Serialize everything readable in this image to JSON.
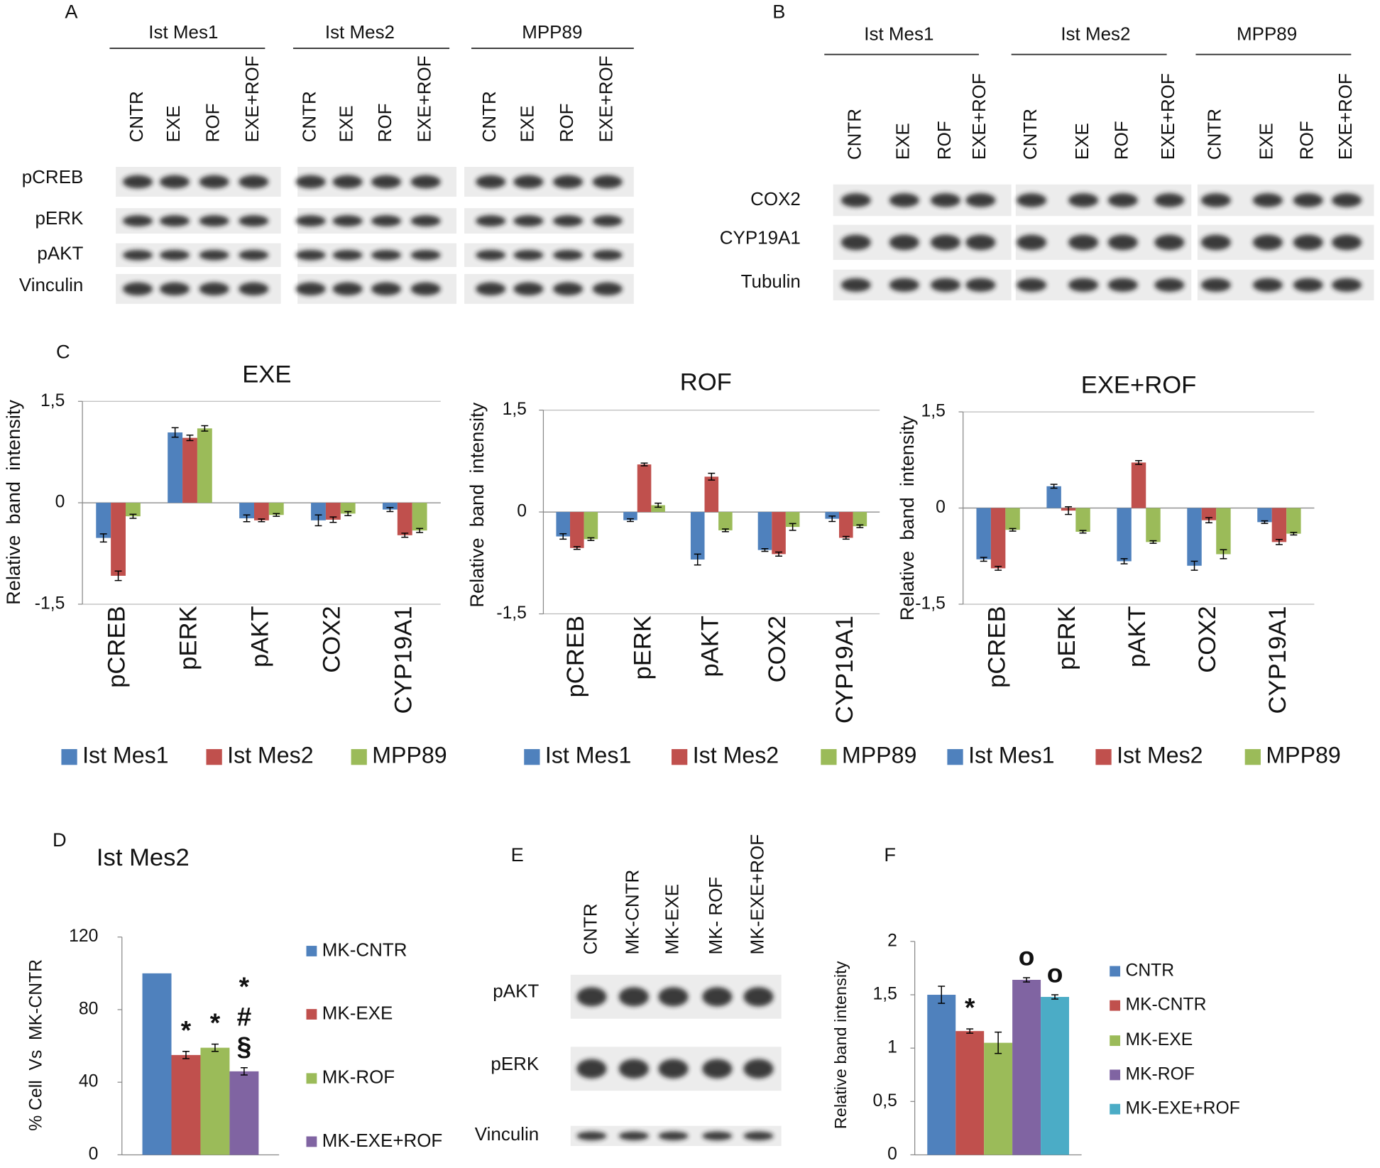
{
  "panel_labels": [
    "A",
    "B",
    "C",
    "D",
    "E",
    "F"
  ],
  "blot_a": {
    "groups": [
      "Ist Mes1",
      "Ist Mes2",
      "MPP89"
    ],
    "lanes": [
      "CNTR",
      "EXE",
      "ROF",
      "EXE+ROF"
    ],
    "rows": [
      "pCREB",
      "pERK",
      "pAKT",
      "Vinculin"
    ]
  },
  "blot_b": {
    "groups": [
      "Ist Mes1",
      "Ist Mes2",
      "MPP89"
    ],
    "lanes": [
      "CNTR",
      "EXE",
      "ROF",
      "EXE+ROF"
    ],
    "rows": [
      "COX2",
      "CYP19A1",
      "Tubulin"
    ]
  },
  "blot_e": {
    "lanes": [
      "CNTR",
      "MK-CNTR",
      "MK-EXE",
      "MK- ROF",
      "MK-EXE+ROF"
    ],
    "rows": [
      "pAKT",
      "pERK",
      "Vinculin"
    ]
  },
  "chart_data": [
    {
      "type": "bar",
      "title": "EXE",
      "ylabel": "Relative  band  intensity",
      "categories": [
        "pCREB",
        "pERK",
        "pAKT",
        "COX2",
        "CYP19A1"
      ],
      "series": [
        {
          "name": "Ist Mes1",
          "color": "#4f81bd",
          "values": [
            -0.52,
            1.04,
            -0.23,
            -0.26,
            -0.1
          ],
          "errors": [
            0.06,
            0.07,
            0.05,
            0.08,
            0.03
          ]
        },
        {
          "name": "Ist Mes2",
          "color": "#c0504d",
          "values": [
            -1.08,
            0.96,
            -0.26,
            -0.25,
            -0.48
          ],
          "errors": [
            0.07,
            0.04,
            0.02,
            0.04,
            0.03
          ]
        },
        {
          "name": "MPP89",
          "color": "#9bbb59",
          "values": [
            -0.2,
            1.1,
            -0.18,
            -0.16,
            -0.41
          ],
          "errors": [
            0.03,
            0.04,
            0.02,
            0.03,
            0.03
          ]
        }
      ],
      "ylim": [
        -1.5,
        1.5
      ],
      "yticks": [
        {
          "value": -1.5,
          "label": "-1,5"
        },
        0,
        {
          "value": 1.5,
          "label": "1,5"
        }
      ],
      "grid": true
    },
    {
      "type": "bar",
      "title": "ROF",
      "ylabel": "Relative  band  intensity",
      "categories": [
        "pCREB",
        "pERK",
        "pAKT",
        "COX2",
        "CYP19A1"
      ],
      "series": [
        {
          "name": "Ist Mes1",
          "color": "#4f81bd",
          "values": [
            -0.36,
            -0.12,
            -0.7,
            -0.56,
            -0.1
          ],
          "errors": [
            0.04,
            0.02,
            0.08,
            0.02,
            0.04
          ]
        },
        {
          "name": "Ist Mes2",
          "color": "#c0504d",
          "values": [
            -0.53,
            0.7,
            0.52,
            -0.62,
            -0.38
          ],
          "errors": [
            0.02,
            0.02,
            0.05,
            0.03,
            0.02
          ]
        },
        {
          "name": "MPP89",
          "color": "#9bbb59",
          "values": [
            -0.4,
            0.1,
            -0.27,
            -0.22,
            -0.21
          ],
          "errors": [
            0.02,
            0.03,
            0.02,
            0.05,
            0.02
          ]
        }
      ],
      "ylim": [
        -1.5,
        1.5
      ],
      "yticks": [
        {
          "value": -1.5,
          "label": "-1,5"
        },
        0,
        {
          "value": 1.5,
          "label": "1,5"
        }
      ],
      "grid": true
    },
    {
      "type": "bar",
      "title": "EXE+ROF",
      "ylabel": "Relative  band  intensity",
      "categories": [
        "pCREB",
        "pERK",
        "pAKT",
        "COX2",
        "CYP19A1"
      ],
      "series": [
        {
          "name": "Ist Mes1",
          "color": "#4f81bd",
          "values": [
            -0.8,
            0.34,
            -0.83,
            -0.9,
            -0.22
          ],
          "errors": [
            0.03,
            0.03,
            0.04,
            0.07,
            0.02
          ]
        },
        {
          "name": "Ist Mes2",
          "color": "#c0504d",
          "values": [
            -0.94,
            -0.04,
            0.71,
            -0.19,
            -0.53
          ],
          "errors": [
            0.03,
            0.06,
            0.03,
            0.04,
            0.04
          ]
        },
        {
          "name": "MPP89",
          "color": "#9bbb59",
          "values": [
            -0.34,
            -0.37,
            -0.53,
            -0.72,
            -0.4
          ],
          "errors": [
            0.02,
            0.02,
            0.02,
            0.07,
            0.02
          ]
        }
      ],
      "ylim": [
        -1.5,
        1.5
      ],
      "yticks": [
        {
          "value": -1.5,
          "label": "-1,5"
        },
        0,
        {
          "value": 1.5,
          "label": "1,5"
        }
      ],
      "grid": true
    },
    {
      "type": "bar",
      "title": "Ist Mes2",
      "ylabel": "% Cell  Vs  MK-CNTR",
      "series": [
        {
          "name": "MK-CNTR",
          "color": "#4f81bd",
          "values": [
            100
          ]
        },
        {
          "name": "MK-EXE",
          "color": "#c0504d",
          "values": [
            55
          ],
          "errors": [
            2
          ],
          "annotations": [
            "*"
          ]
        },
        {
          "name": "MK-ROF",
          "color": "#9bbb59",
          "values": [
            59
          ],
          "errors": [
            2
          ],
          "annotations": [
            "*"
          ]
        },
        {
          "name": "MK-EXE+ROF",
          "color": "#8064a2",
          "values": [
            46
          ],
          "errors": [
            2
          ],
          "annotations": [
            "*",
            "#",
            "§"
          ]
        }
      ],
      "ylim": [
        0,
        120
      ],
      "yticks": [
        0,
        40,
        80,
        120
      ],
      "grid": false
    },
    {
      "type": "bar",
      "ylabel": "Relative band intensity",
      "series": [
        {
          "name": "CNTR",
          "color": "#4f81bd",
          "values": [
            1.5
          ],
          "errors": [
            0.08
          ]
        },
        {
          "name": "MK-CNTR",
          "color": "#c0504d",
          "values": [
            1.16
          ],
          "errors": [
            0.02
          ],
          "annotations": [
            "*"
          ]
        },
        {
          "name": "MK-EXE",
          "color": "#9bbb59",
          "values": [
            1.05
          ],
          "errors": [
            0.1
          ]
        },
        {
          "name": "MK-ROF",
          "color": "#8064a2",
          "values": [
            1.64
          ],
          "errors": [
            0.02
          ],
          "annotations": [
            "o"
          ]
        },
        {
          "name": "MK-EXE+ROF",
          "color": "#4bacc6",
          "values": [
            1.48
          ],
          "errors": [
            0.02
          ],
          "annotations": [
            "o"
          ]
        }
      ],
      "ylim": [
        0,
        2
      ],
      "yticks": [
        0,
        {
          "value": 0.5,
          "label": "0,5"
        },
        1,
        {
          "value": 1.5,
          "label": "1,5"
        },
        2
      ],
      "grid": false
    }
  ]
}
